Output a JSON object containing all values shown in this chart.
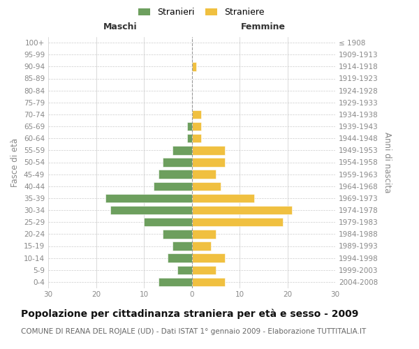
{
  "age_groups": [
    "0-4",
    "5-9",
    "10-14",
    "15-19",
    "20-24",
    "25-29",
    "30-34",
    "35-39",
    "40-44",
    "45-49",
    "50-54",
    "55-59",
    "60-64",
    "65-69",
    "70-74",
    "75-79",
    "80-84",
    "85-89",
    "90-94",
    "95-99",
    "100+"
  ],
  "birth_years": [
    "2004-2008",
    "1999-2003",
    "1994-1998",
    "1989-1993",
    "1984-1988",
    "1979-1983",
    "1974-1978",
    "1969-1973",
    "1964-1968",
    "1959-1963",
    "1954-1958",
    "1949-1953",
    "1944-1948",
    "1939-1943",
    "1934-1938",
    "1929-1933",
    "1924-1928",
    "1919-1923",
    "1914-1918",
    "1909-1913",
    "≤ 1908"
  ],
  "males": [
    7,
    3,
    5,
    4,
    6,
    10,
    17,
    18,
    8,
    7,
    6,
    4,
    1,
    1,
    0,
    0,
    0,
    0,
    0,
    0,
    0
  ],
  "females": [
    7,
    5,
    7,
    4,
    5,
    19,
    21,
    13,
    6,
    5,
    7,
    7,
    2,
    2,
    2,
    0,
    0,
    0,
    1,
    0,
    0
  ],
  "male_color": "#6d9f5e",
  "female_color": "#f0c040",
  "xlim": 30,
  "title": "Popolazione per cittadinanza straniera per età e sesso - 2009",
  "subtitle": "COMUNE DI REANA DEL ROJALE (UD) - Dati ISTAT 1° gennaio 2009 - Elaborazione TUTTITALIA.IT",
  "xlabel_left": "Maschi",
  "xlabel_right": "Femmine",
  "ylabel_left": "Fasce di età",
  "ylabel_right": "Anni di nascita",
  "legend_male": "Stranieri",
  "legend_female": "Straniere",
  "grid_color": "#cccccc",
  "background_color": "#ffffff",
  "tick_color": "#888888",
  "header_color": "#333333",
  "title_color": "#111111",
  "subtitle_color": "#666666",
  "title_fontsize": 10,
  "subtitle_fontsize": 7.5,
  "header_fontsize": 9,
  "label_fontsize": 8.5,
  "tick_fontsize": 7.5,
  "legend_fontsize": 9
}
